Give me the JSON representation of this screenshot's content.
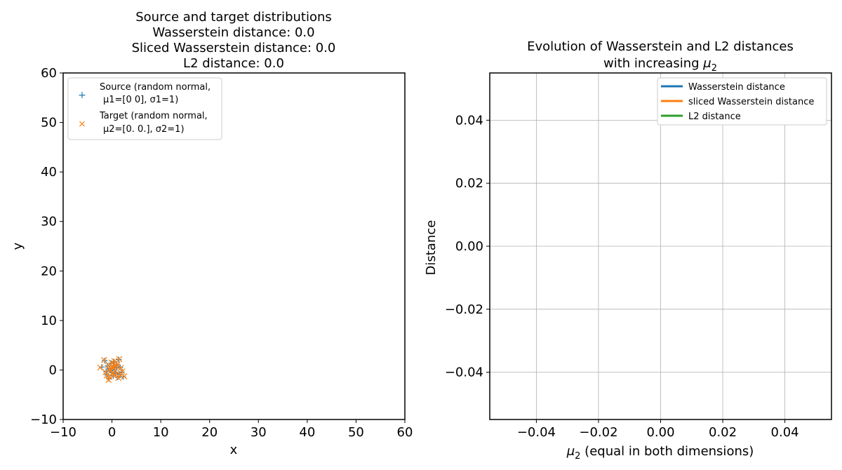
{
  "chart_data": [
    {
      "type": "scatter",
      "title_lines": [
        "Source and target distributions",
        "Wasserstein distance: 0.0",
        "Sliced Wasserstein distance: 0.0",
        "L2 distance: 0.0"
      ],
      "xlabel": "x",
      "ylabel": "y",
      "xlim": [
        -10,
        60
      ],
      "ylim": [
        -10,
        60
      ],
      "xticks": [
        "−10",
        "0",
        "10",
        "20",
        "30",
        "40",
        "50",
        "60"
      ],
      "xtick_values": [
        -10,
        0,
        10,
        20,
        30,
        40,
        50,
        60
      ],
      "yticks": [
        "−10",
        "0",
        "10",
        "20",
        "30",
        "40",
        "50",
        "60"
      ],
      "ytick_values": [
        -10,
        0,
        10,
        20,
        30,
        40,
        50,
        60
      ],
      "grid": false,
      "legend_position": "top-left",
      "series": [
        {
          "name": "Source (random normal, μ1=[0 0], σ1=1)",
          "legend_line1": "Source (random normal,",
          "legend_line2": "μ1=[0 0], σ1=1)",
          "marker": "+",
          "color": "#1f77b4",
          "points": [
            [
              -2.1,
              0.6
            ],
            [
              -1.5,
              1.9
            ],
            [
              -1.2,
              -0.3
            ],
            [
              -0.9,
              0.8
            ],
            [
              -0.6,
              -1.8
            ],
            [
              -0.5,
              0.2
            ],
            [
              -0.2,
              1.4
            ],
            [
              0.0,
              -0.5
            ],
            [
              0.1,
              0.3
            ],
            [
              0.3,
              -1.2
            ],
            [
              0.4,
              1.7
            ],
            [
              0.6,
              0.0
            ],
            [
              0.8,
              -0.7
            ],
            [
              1.0,
              1.0
            ],
            [
              1.2,
              -1.5
            ],
            [
              1.4,
              2.1
            ],
            [
              1.7,
              0.5
            ],
            [
              2.0,
              -0.4
            ],
            [
              2.3,
              -1.4
            ],
            [
              -1.0,
              -1.0
            ],
            [
              0.9,
              0.6
            ],
            [
              -0.3,
              -0.1
            ],
            [
              0.5,
              0.9
            ],
            [
              1.6,
              -0.9
            ]
          ]
        },
        {
          "name": "Target (random normal, μ2=[0. 0.], σ2=1)",
          "legend_line1": "Target (random normal,",
          "legend_line2": "μ2=[0. 0.], σ2=1)",
          "marker": "x",
          "color": "#ff7f0e",
          "points": [
            [
              -2.4,
              0.5
            ],
            [
              -1.6,
              2.0
            ],
            [
              -1.3,
              -0.4
            ],
            [
              -0.8,
              0.9
            ],
            [
              -0.7,
              -2.0
            ],
            [
              -0.4,
              0.1
            ],
            [
              -0.1,
              1.5
            ],
            [
              0.1,
              -0.6
            ],
            [
              0.2,
              0.4
            ],
            [
              0.4,
              -1.1
            ],
            [
              0.5,
              1.8
            ],
            [
              0.7,
              -0.1
            ],
            [
              0.9,
              -0.8
            ],
            [
              1.1,
              1.1
            ],
            [
              1.3,
              -1.6
            ],
            [
              1.5,
              2.2
            ],
            [
              1.8,
              0.4
            ],
            [
              2.1,
              -0.3
            ],
            [
              2.5,
              -1.3
            ],
            [
              -1.1,
              -1.1
            ],
            [
              1.0,
              0.7
            ],
            [
              -0.2,
              -0.2
            ],
            [
              0.6,
              1.0
            ],
            [
              1.7,
              -1.0
            ],
            [
              -0.5,
              -1.4
            ],
            [
              0.0,
              0.8
            ]
          ]
        }
      ]
    },
    {
      "type": "line",
      "title_line1": "Evolution of Wasserstein and L2 distances",
      "title_line2_prefix": "with increasing ",
      "title_line2_mu": "μ",
      "title_line2_sub": "2",
      "xlabel_mu": "μ",
      "xlabel_sub": "2",
      "xlabel_rest": " (equal in both dimensions)",
      "ylabel": "Distance",
      "xlim": [
        -0.055,
        0.055
      ],
      "ylim": [
        -0.055,
        0.055
      ],
      "xticks": [
        "−0.04",
        "−0.02",
        "0.00",
        "0.02",
        "0.04"
      ],
      "xtick_values": [
        -0.04,
        -0.02,
        0.0,
        0.02,
        0.04
      ],
      "yticks": [
        "−0.04",
        "−0.02",
        "0.00",
        "0.02",
        "0.04"
      ],
      "ytick_values": [
        -0.04,
        -0.02,
        0.0,
        0.02,
        0.04
      ],
      "grid": true,
      "legend_position": "top-right",
      "series": [
        {
          "name": "Wasserstein distance",
          "color": "#1f77b4",
          "x": [],
          "y": []
        },
        {
          "name": "sliced Wasserstein distance",
          "color": "#ff7f0e",
          "x": [],
          "y": []
        },
        {
          "name": "L2 distance",
          "color": "#2ca02c",
          "x": [],
          "y": []
        }
      ]
    }
  ]
}
